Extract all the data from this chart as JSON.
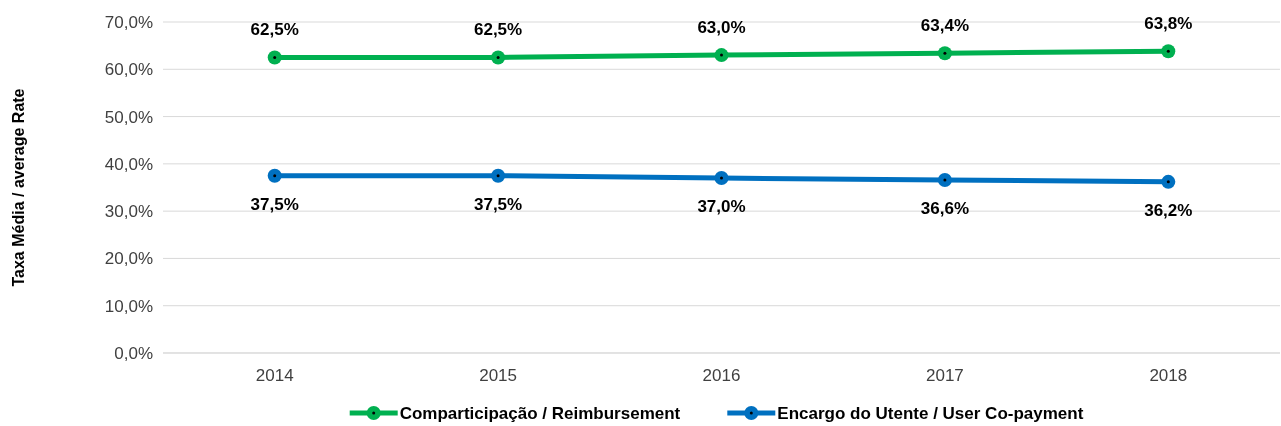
{
  "chart_data": {
    "type": "line",
    "ylabel": "Taxa Média / average Rate",
    "categories": [
      "2014",
      "2015",
      "2016",
      "2017",
      "2018"
    ],
    "series": [
      {
        "name": "Comparticipação / Reimbursement",
        "color": "#00b050",
        "values": [
          62.5,
          62.5,
          63.0,
          63.4,
          63.8
        ],
        "value_labels": [
          "62,5%",
          "62,5%",
          "63,0%",
          "63,4%",
          "63,8%"
        ]
      },
      {
        "name": "Encargo do Utente / User Co-payment",
        "color": "#0070c0",
        "values": [
          37.5,
          37.5,
          37.0,
          36.6,
          36.2
        ],
        "value_labels": [
          "37,5%",
          "37,5%",
          "37,0%",
          "36,6%",
          "36,2%"
        ]
      }
    ],
    "ylim": [
      0,
      70
    ],
    "yticks": [
      {
        "value": 0,
        "label": "0,0%"
      },
      {
        "value": 10,
        "label": "10,0%"
      },
      {
        "value": 20,
        "label": "20,0%"
      },
      {
        "value": 30,
        "label": "30,0%"
      },
      {
        "value": 40,
        "label": "40,0%"
      },
      {
        "value": 50,
        "label": "50,0%"
      },
      {
        "value": 60,
        "label": "60,0%"
      },
      {
        "value": 70,
        "label": "70,0%"
      }
    ],
    "grid": "y",
    "legend": "bottom",
    "marker": "circle",
    "line_style": "solid"
  }
}
